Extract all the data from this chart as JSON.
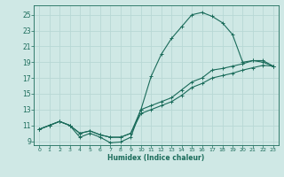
{
  "xlabel": "Humidex (Indice chaleur)",
  "ylabel": "",
  "xlim": [
    -0.5,
    23.5
  ],
  "ylim": [
    8.5,
    26.2
  ],
  "xticks": [
    0,
    1,
    2,
    3,
    4,
    5,
    6,
    7,
    8,
    9,
    10,
    11,
    12,
    13,
    14,
    15,
    16,
    17,
    18,
    19,
    20,
    21,
    22,
    23
  ],
  "yticks": [
    9,
    11,
    13,
    15,
    17,
    19,
    21,
    23,
    25
  ],
  "bg_color": "#cfe8e5",
  "grid_color": "#b8d8d5",
  "line_color": "#1a6b5a",
  "line1_x": [
    0,
    1,
    2,
    3,
    4,
    5,
    6,
    7,
    8,
    9,
    10,
    11,
    12,
    13,
    14,
    15,
    16,
    17,
    18,
    19,
    20,
    21,
    22,
    23
  ],
  "line1_y": [
    10.5,
    11.0,
    11.5,
    11.0,
    9.5,
    10.0,
    9.5,
    8.8,
    8.9,
    9.5,
    13.0,
    17.2,
    20.0,
    22.0,
    23.5,
    25.0,
    25.3,
    24.8,
    24.0,
    22.5,
    19.0,
    19.2,
    19.0,
    18.5
  ],
  "line2_x": [
    0,
    1,
    2,
    3,
    4,
    5,
    6,
    7,
    8,
    9,
    10,
    11,
    12,
    13,
    14,
    15,
    16,
    17,
    18,
    19,
    20,
    21,
    22,
    23
  ],
  "line2_y": [
    10.5,
    11.0,
    11.5,
    11.0,
    10.0,
    10.3,
    9.8,
    9.5,
    9.5,
    10.0,
    13.0,
    13.5,
    14.0,
    14.5,
    15.5,
    16.5,
    17.0,
    18.0,
    18.2,
    18.5,
    18.8,
    19.2,
    19.2,
    18.5
  ],
  "line3_x": [
    0,
    1,
    2,
    3,
    4,
    5,
    6,
    7,
    8,
    9,
    10,
    11,
    12,
    13,
    14,
    15,
    16,
    17,
    18,
    19,
    20,
    21,
    22,
    23
  ],
  "line3_y": [
    10.5,
    11.0,
    11.5,
    11.0,
    10.0,
    10.3,
    9.8,
    9.5,
    9.5,
    10.0,
    12.5,
    13.0,
    13.5,
    14.0,
    14.8,
    15.8,
    16.3,
    17.0,
    17.3,
    17.6,
    18.0,
    18.3,
    18.6,
    18.5
  ]
}
